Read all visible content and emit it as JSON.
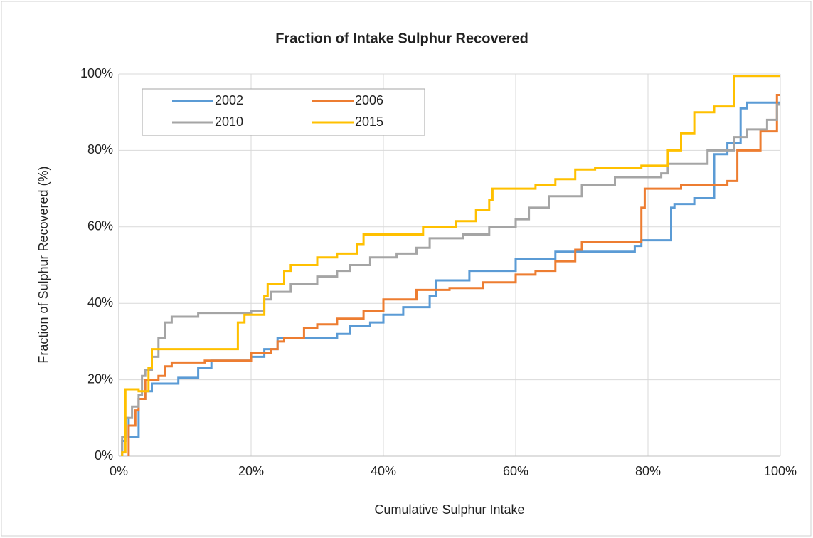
{
  "chart_data": {
    "type": "line",
    "title": "Fraction of Intake Sulphur Recovered",
    "x_label": "Cumulative Sulphur Intake",
    "y_label": "Fraction of Sulphur Recovered (%)",
    "xlim": [
      0,
      100
    ],
    "ylim": [
      0,
      100
    ],
    "xticks": [
      {
        "value": 0,
        "label": "0%"
      },
      {
        "value": 20,
        "label": "20%"
      },
      {
        "value": 40,
        "label": "40%"
      },
      {
        "value": 60,
        "label": "60%"
      },
      {
        "value": 80,
        "label": "80%"
      },
      {
        "value": 100,
        "label": "100%"
      }
    ],
    "yticks": [
      {
        "value": 0,
        "label": "0%"
      },
      {
        "value": 20,
        "label": "20%"
      },
      {
        "value": 40,
        "label": "40%"
      },
      {
        "value": 60,
        "label": "60%"
      },
      {
        "value": 80,
        "label": "80%"
      },
      {
        "value": 100,
        "label": "100%"
      }
    ],
    "grid": true,
    "legend": "upper left",
    "series": [
      {
        "name": "2002",
        "color": "#5b9bd5",
        "x": [
          0.5,
          0.5,
          1,
          1,
          1.5,
          1.5,
          3,
          3,
          4,
          4,
          5,
          5,
          9,
          9,
          12,
          12,
          14,
          14,
          20,
          20,
          22,
          22,
          24,
          24,
          33,
          33,
          35,
          35,
          38,
          38,
          40,
          40,
          43,
          43,
          47,
          47,
          48,
          48,
          53,
          53,
          60,
          60,
          66,
          66,
          78,
          78,
          79,
          79,
          83.5,
          83.5,
          84,
          84,
          87,
          87,
          90,
          90,
          92,
          92,
          94,
          94,
          95,
          95,
          100
        ],
        "values": [
          0,
          4,
          4,
          10,
          10,
          5,
          5,
          15,
          15,
          17,
          17,
          19,
          19,
          20.5,
          20.5,
          23,
          23,
          25,
          25,
          26,
          26,
          28,
          28,
          31,
          31,
          32,
          32,
          34,
          34,
          35,
          35,
          37,
          37,
          39,
          39,
          42,
          42,
          46,
          46,
          48.5,
          48.5,
          51.5,
          51.5,
          53.5,
          53.5,
          55,
          55,
          56.5,
          56.5,
          65,
          65,
          66,
          66,
          67.5,
          67.5,
          79,
          79,
          82,
          82,
          91,
          91,
          92.5,
          92.5
        ]
      },
      {
        "name": "2006",
        "color": "#ed7d31",
        "x": [
          1.5,
          1.5,
          2.5,
          2.5,
          3,
          3,
          4,
          4,
          6,
          6,
          7,
          7,
          8,
          8,
          13,
          13,
          20,
          20,
          23,
          23,
          24,
          24,
          25,
          25,
          28,
          28,
          30,
          30,
          33,
          33,
          37,
          37,
          40,
          40,
          45,
          45,
          50,
          50,
          55,
          55,
          60,
          60,
          63,
          63,
          66,
          66,
          69,
          69,
          70,
          70,
          79,
          79,
          79.5,
          79.5,
          85,
          85,
          92,
          92,
          93.5,
          93.5,
          97,
          97,
          99.5,
          99.5,
          100
        ],
        "values": [
          0,
          8,
          8,
          12,
          12,
          15,
          15,
          20,
          20,
          21,
          21,
          23.5,
          23.5,
          24.5,
          24.5,
          25,
          25,
          27,
          27,
          28,
          28,
          30,
          30,
          31,
          31,
          33.5,
          33.5,
          34.5,
          34.5,
          36,
          36,
          38,
          38,
          41,
          41,
          43.5,
          43.5,
          44,
          44,
          45.5,
          45.5,
          47.5,
          47.5,
          48.5,
          48.5,
          51,
          51,
          54,
          54,
          56,
          56,
          65,
          65,
          70,
          70,
          71,
          71,
          72,
          72,
          80,
          80,
          85,
          85,
          94.5,
          94.5
        ]
      },
      {
        "name": "2010",
        "color": "#a5a5a5",
        "x": [
          0.5,
          0.5,
          1,
          1,
          2,
          2,
          3,
          3,
          3.5,
          3.5,
          4,
          4,
          5,
          5,
          6,
          6,
          7,
          7,
          8,
          8,
          12,
          12,
          20,
          20,
          22,
          22,
          23,
          23,
          26,
          26,
          30,
          30,
          33,
          33,
          35,
          35,
          38,
          38,
          42,
          42,
          45,
          45,
          47,
          47,
          52,
          52,
          56,
          56,
          60,
          60,
          62,
          62,
          65,
          65,
          70,
          70,
          75,
          75,
          82,
          82,
          83,
          83,
          89,
          89,
          93,
          93,
          95,
          95,
          98,
          98,
          99.5,
          99.5,
          100
        ],
        "values": [
          0,
          5,
          5,
          10,
          10,
          13,
          13,
          16,
          16,
          21,
          21,
          22.5,
          22.5,
          26,
          26,
          31,
          31,
          35,
          35,
          36.5,
          36.5,
          37.5,
          37.5,
          38,
          38,
          41,
          41,
          43,
          43,
          45,
          45,
          47,
          47,
          48.5,
          48.5,
          50,
          50,
          52,
          52,
          53,
          53,
          54.5,
          54.5,
          57,
          57,
          58,
          58,
          60,
          60,
          62,
          62,
          65,
          65,
          68,
          68,
          71,
          71,
          73,
          73,
          74,
          74,
          76.5,
          76.5,
          80,
          80,
          83.5,
          83.5,
          85.5,
          85.5,
          88,
          88,
          92,
          92
        ]
      },
      {
        "name": "2015",
        "color": "#ffc000",
        "x": [
          0.5,
          0.5,
          1,
          1,
          3,
          3,
          4.5,
          4.5,
          5,
          5,
          18,
          18,
          19,
          19,
          22,
          22,
          22.5,
          22.5,
          25,
          25,
          26,
          26,
          30,
          30,
          33,
          33,
          36,
          36,
          37,
          37,
          46,
          46,
          51,
          51,
          54,
          54,
          56,
          56,
          56.5,
          56.5,
          63,
          63,
          66,
          66,
          69,
          69,
          72,
          72,
          79,
          79,
          83,
          83,
          85,
          85,
          87,
          87,
          90,
          90,
          93,
          93,
          100
        ],
        "values": [
          0,
          1,
          1,
          17.5,
          17.5,
          17,
          17,
          23,
          23,
          28,
          28,
          35,
          35,
          37,
          37,
          42,
          42,
          45,
          45,
          48.5,
          48.5,
          50,
          50,
          52,
          52,
          53,
          53,
          55.5,
          55.5,
          58,
          58,
          60,
          60,
          61.5,
          61.5,
          64.5,
          64.5,
          67,
          67,
          70,
          70,
          71,
          71,
          72.5,
          72.5,
          75,
          75,
          75.5,
          75.5,
          76,
          76,
          80,
          80,
          84.5,
          84.5,
          90,
          90,
          91.5,
          91.5,
          99.5,
          99.5
        ]
      }
    ]
  }
}
